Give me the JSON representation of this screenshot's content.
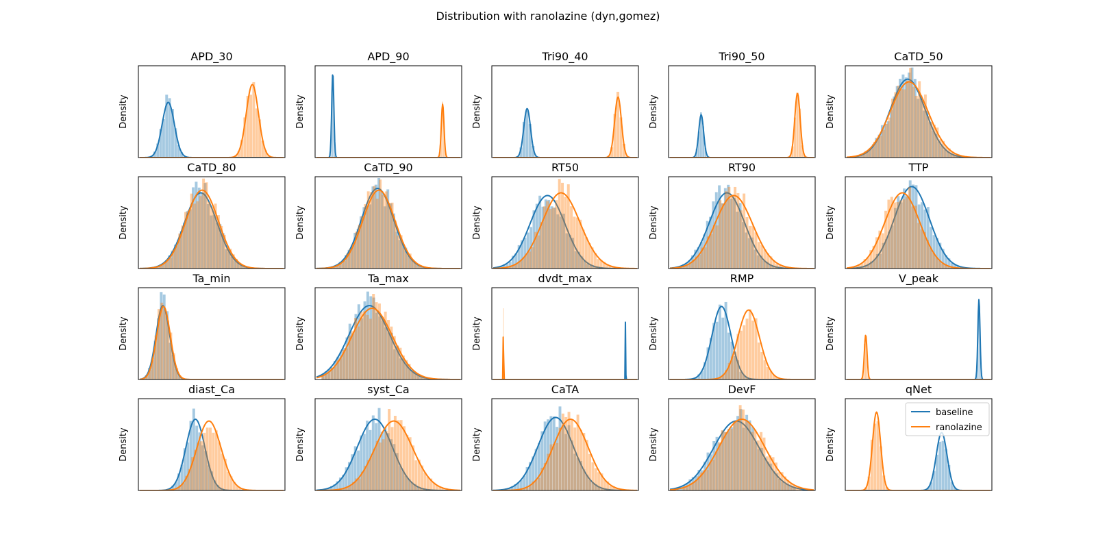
{
  "chart_data": {
    "type": "histogram-kde-grid",
    "title": "Distribution with ranolazine (dyn,gomez)",
    "ylabel": "Density",
    "x_ticks_visible": false,
    "y_ticks_visible": false,
    "grid": false,
    "legend": {
      "panel": "qNet",
      "placement": "upper-right",
      "entries": [
        "baseline",
        "ranolazine"
      ]
    },
    "colors": {
      "baseline": "#1f77b4",
      "ranolazine": "#ff7f0e"
    },
    "panels": [
      {
        "name": "APD_30",
        "series": [
          {
            "series": "baseline",
            "mean": 0.18,
            "sd": 0.045,
            "peak": 0.62
          },
          {
            "series": "ranolazine",
            "mean": 0.8,
            "sd": 0.045,
            "peak": 0.82
          }
        ]
      },
      {
        "name": "APD_90",
        "series": [
          {
            "series": "baseline",
            "mean": 0.09,
            "sd": 0.008,
            "peak": 0.95
          },
          {
            "series": "ranolazine",
            "mean": 0.9,
            "sd": 0.01,
            "peak": 0.6
          }
        ]
      },
      {
        "name": "Tri90_40",
        "series": [
          {
            "series": "baseline",
            "mean": 0.22,
            "sd": 0.025,
            "peak": 0.55
          },
          {
            "series": "ranolazine",
            "mean": 0.89,
            "sd": 0.025,
            "peak": 0.68
          }
        ]
      },
      {
        "name": "Tri90_50",
        "series": [
          {
            "series": "baseline",
            "mean": 0.2,
            "sd": 0.018,
            "peak": 0.48
          },
          {
            "series": "ranolazine",
            "mean": 0.91,
            "sd": 0.02,
            "peak": 0.72
          }
        ]
      },
      {
        "name": "CaTD_50",
        "series": [
          {
            "series": "baseline",
            "mean": 0.42,
            "sd": 0.13,
            "peak": 0.88
          },
          {
            "series": "ranolazine",
            "mean": 0.43,
            "sd": 0.14,
            "peak": 0.85
          }
        ]
      },
      {
        "name": "CaTD_80",
        "series": [
          {
            "series": "baseline",
            "mean": 0.42,
            "sd": 0.12,
            "peak": 0.85
          },
          {
            "series": "ranolazine",
            "mean": 0.43,
            "sd": 0.12,
            "peak": 0.88
          }
        ]
      },
      {
        "name": "CaTD_90",
        "series": [
          {
            "series": "baseline",
            "mean": 0.42,
            "sd": 0.12,
            "peak": 0.9
          },
          {
            "series": "ranolazine",
            "mean": 0.43,
            "sd": 0.12,
            "peak": 0.88
          }
        ]
      },
      {
        "name": "RT50",
        "series": [
          {
            "series": "baseline",
            "mean": 0.37,
            "sd": 0.13,
            "peak": 0.82
          },
          {
            "series": "ranolazine",
            "mean": 0.47,
            "sd": 0.14,
            "peak": 0.85
          }
        ]
      },
      {
        "name": "RT90",
        "series": [
          {
            "series": "baseline",
            "mean": 0.39,
            "sd": 0.13,
            "peak": 0.85
          },
          {
            "series": "ranolazine",
            "mean": 0.44,
            "sd": 0.14,
            "peak": 0.82
          }
        ]
      },
      {
        "name": "TTP",
        "series": [
          {
            "series": "baseline",
            "mean": 0.45,
            "sd": 0.13,
            "peak": 0.92
          },
          {
            "series": "ranolazine",
            "mean": 0.38,
            "sd": 0.13,
            "peak": 0.85
          }
        ]
      },
      {
        "name": "Ta_min",
        "series": [
          {
            "series": "baseline",
            "mean": 0.14,
            "sd": 0.05,
            "peak": 0.83
          },
          {
            "series": "ranolazine",
            "mean": 0.145,
            "sd": 0.05,
            "peak": 0.82
          }
        ]
      },
      {
        "name": "Ta_max",
        "series": [
          {
            "series": "baseline",
            "mean": 0.36,
            "sd": 0.15,
            "peak": 0.83
          },
          {
            "series": "ranolazine",
            "mean": 0.38,
            "sd": 0.15,
            "peak": 0.8
          }
        ]
      },
      {
        "name": "dvdt_max",
        "series": [
          {
            "series": "baseline",
            "mean": 0.945,
            "sd": 0.0015,
            "peak": 0.7
          },
          {
            "series": "ranolazine",
            "mean": 0.045,
            "sd": 0.0015,
            "peak": 0.85
          }
        ]
      },
      {
        "name": "RMP",
        "series": [
          {
            "series": "baseline",
            "mean": 0.35,
            "sd": 0.07,
            "peak": 0.82
          },
          {
            "series": "ranolazine",
            "mean": 0.55,
            "sd": 0.08,
            "peak": 0.78
          }
        ]
      },
      {
        "name": "V_peak",
        "series": [
          {
            "series": "baseline",
            "mean": 0.945,
            "sd": 0.008,
            "peak": 0.9
          },
          {
            "series": "ranolazine",
            "mean": 0.11,
            "sd": 0.01,
            "peak": 0.5
          }
        ]
      },
      {
        "name": "diast_Ca",
        "series": [
          {
            "series": "baseline",
            "mean": 0.38,
            "sd": 0.07,
            "peak": 0.8
          },
          {
            "series": "ranolazine",
            "mean": 0.48,
            "sd": 0.09,
            "peak": 0.78
          }
        ]
      },
      {
        "name": "syst_Ca",
        "series": [
          {
            "series": "baseline",
            "mean": 0.4,
            "sd": 0.13,
            "peak": 0.8
          },
          {
            "series": "ranolazine",
            "mean": 0.54,
            "sd": 0.14,
            "peak": 0.78
          }
        ]
      },
      {
        "name": "CaTA",
        "series": [
          {
            "series": "baseline",
            "mean": 0.43,
            "sd": 0.13,
            "peak": 0.82
          },
          {
            "series": "ranolazine",
            "mean": 0.54,
            "sd": 0.13,
            "peak": 0.8
          }
        ]
      },
      {
        "name": "DevF",
        "series": [
          {
            "series": "baseline",
            "mean": 0.46,
            "sd": 0.17,
            "peak": 0.78
          },
          {
            "series": "ranolazine",
            "mean": 0.5,
            "sd": 0.17,
            "peak": 0.8
          }
        ]
      },
      {
        "name": "qNet",
        "series": [
          {
            "series": "baseline",
            "mean": 0.67,
            "sd": 0.04,
            "peak": 0.65
          },
          {
            "series": "ranolazine",
            "mean": 0.19,
            "sd": 0.03,
            "peak": 0.88
          }
        ]
      }
    ]
  }
}
